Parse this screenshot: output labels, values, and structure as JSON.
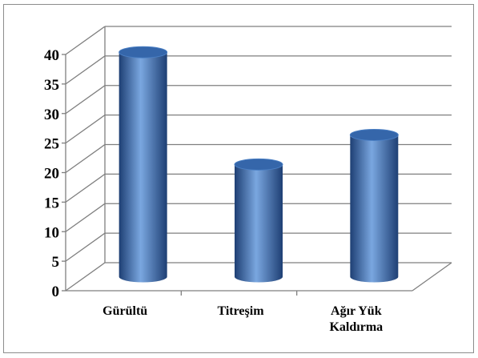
{
  "chart_data": {
    "type": "bar",
    "style": "3d-cylinder",
    "categories": [
      "Gürültü",
      "Titreşim",
      "Ağır Yük Kaldırma"
    ],
    "category_lines": [
      [
        "Gürültü"
      ],
      [
        "Titreşim"
      ],
      [
        "Ağır Yük",
        "Kaldırma"
      ]
    ],
    "values": [
      38,
      19,
      24
    ],
    "ylim": [
      0,
      40
    ],
    "yticks": [
      "0",
      "5",
      "10",
      "15",
      "20",
      "25",
      "30",
      "35",
      "40"
    ],
    "grid": true,
    "legend": "none",
    "colors": {
      "bar_dark": "#1e3f74",
      "bar_mid": "#4a7fc4",
      "bar_light": "#7aa7e0",
      "bar_top": "#3566aa",
      "grid": "#7f7f7f"
    }
  }
}
